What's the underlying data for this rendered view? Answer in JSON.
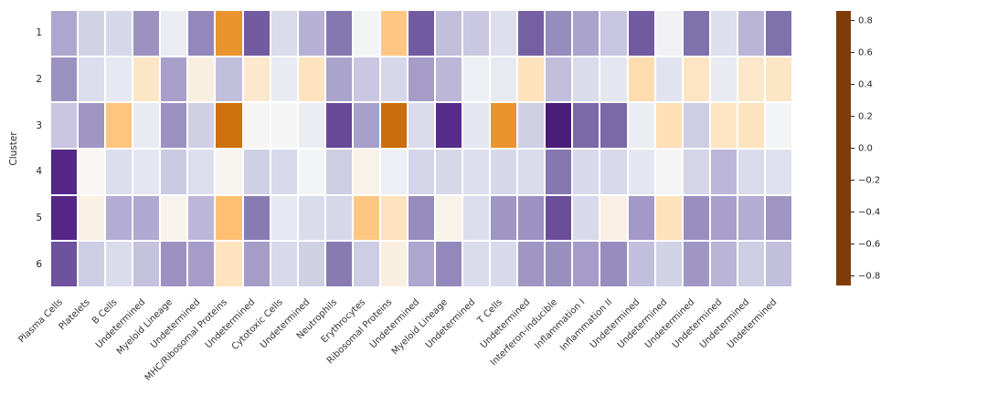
{
  "figure": {
    "background": "#ffffff"
  },
  "chart_data": {
    "type": "heatmap",
    "title": "",
    "xlabel": "",
    "ylabel": "Cluster",
    "rows": [
      "1",
      "2",
      "3",
      "4",
      "5",
      "6"
    ],
    "columns": [
      "Plasma Cells",
      "Platelets",
      "B Cells",
      "Undetermined",
      "Myeloid Lineage",
      "Undetermined",
      "MHC/Ribosomal Proteins",
      "Undetermined",
      "Cytotoxic Cells",
      "Undetermined",
      "Neutrophils",
      "Erythrocytes",
      "Ribosomal Proteins",
      "Undetermined",
      "Myeloid Lineage",
      "Undetermined",
      "T Cells",
      "Undetermined",
      "Interferon-inducible",
      "Inflammation I",
      "Inflammation II",
      "Undetermined",
      "Undetermined",
      "Undetermined",
      "Undetermined",
      "Undetermined",
      "Undetermined"
    ],
    "values": [
      [
        0.36,
        0.2,
        0.18,
        0.42,
        0.06,
        0.45,
        -0.46,
        0.57,
        0.16,
        0.32,
        0.5,
        0.02,
        -0.28,
        0.57,
        0.27,
        0.24,
        0.14,
        0.56,
        0.44,
        0.37,
        0.25,
        0.57,
        0.03,
        0.52,
        0.14,
        0.31,
        0.52
      ],
      [
        0.42,
        0.15,
        0.09,
        -0.13,
        0.38,
        -0.06,
        0.27,
        -0.11,
        0.07,
        -0.15,
        0.37,
        0.24,
        0.18,
        0.39,
        0.3,
        0.05,
        0.08,
        -0.16,
        0.27,
        0.16,
        0.1,
        -0.19,
        0.12,
        -0.14,
        0.07,
        -0.12,
        -0.13
      ],
      [
        0.25,
        0.41,
        -0.29,
        0.07,
        0.42,
        0.21,
        -0.59,
        0.01,
        0.01,
        0.06,
        0.61,
        0.38,
        -0.6,
        0.16,
        0.68,
        0.1,
        -0.46,
        0.21,
        0.73,
        0.54,
        0.54,
        0.06,
        -0.17,
        0.22,
        -0.14,
        -0.15,
        0.02
      ],
      [
        0.69,
        -0.01,
        0.15,
        0.1,
        0.23,
        0.14,
        -0.02,
        0.21,
        0.17,
        0.02,
        0.22,
        -0.04,
        0.05,
        0.19,
        0.18,
        0.14,
        0.18,
        0.16,
        0.5,
        0.17,
        0.17,
        0.1,
        0.01,
        0.19,
        0.3,
        0.16,
        0.13
      ],
      [
        0.69,
        -0.05,
        0.34,
        0.35,
        -0.03,
        0.3,
        -0.31,
        0.49,
        0.09,
        0.16,
        0.18,
        -0.28,
        -0.15,
        0.44,
        -0.04,
        0.15,
        0.41,
        0.42,
        0.6,
        0.17,
        -0.05,
        0.4,
        -0.16,
        0.43,
        0.38,
        0.34,
        0.41
      ],
      [
        0.59,
        0.22,
        0.16,
        0.26,
        0.42,
        0.39,
        -0.15,
        0.39,
        0.17,
        0.21,
        0.49,
        0.22,
        -0.06,
        0.36,
        0.45,
        0.16,
        0.17,
        0.41,
        0.43,
        0.39,
        0.44,
        0.27,
        0.2,
        0.41,
        0.31,
        0.22,
        0.27
      ]
    ],
    "vmin": -0.86,
    "vmax": 0.86,
    "colormap": {
      "name": "PuOr",
      "anchors": [
        "#7f3b08",
        "#b35806",
        "#e08214",
        "#fdb863",
        "#fee0b6",
        "#f7f7f7",
        "#d8daeb",
        "#b2abd2",
        "#8073ac",
        "#542788",
        "#2d004b"
      ]
    },
    "colorbar": {
      "position": "right",
      "ticks": [
        0.8,
        0.6,
        0.4,
        0.2,
        0.0,
        -0.2,
        -0.4,
        -0.6,
        -0.8
      ],
      "tick_labels": [
        "0.8",
        "0.6",
        "0.4",
        "0.2",
        "0.0",
        "−0.2",
        "−0.4",
        "−0.6",
        "−0.8"
      ]
    },
    "grid": false,
    "cell_gap_color": "#ffffff"
  }
}
